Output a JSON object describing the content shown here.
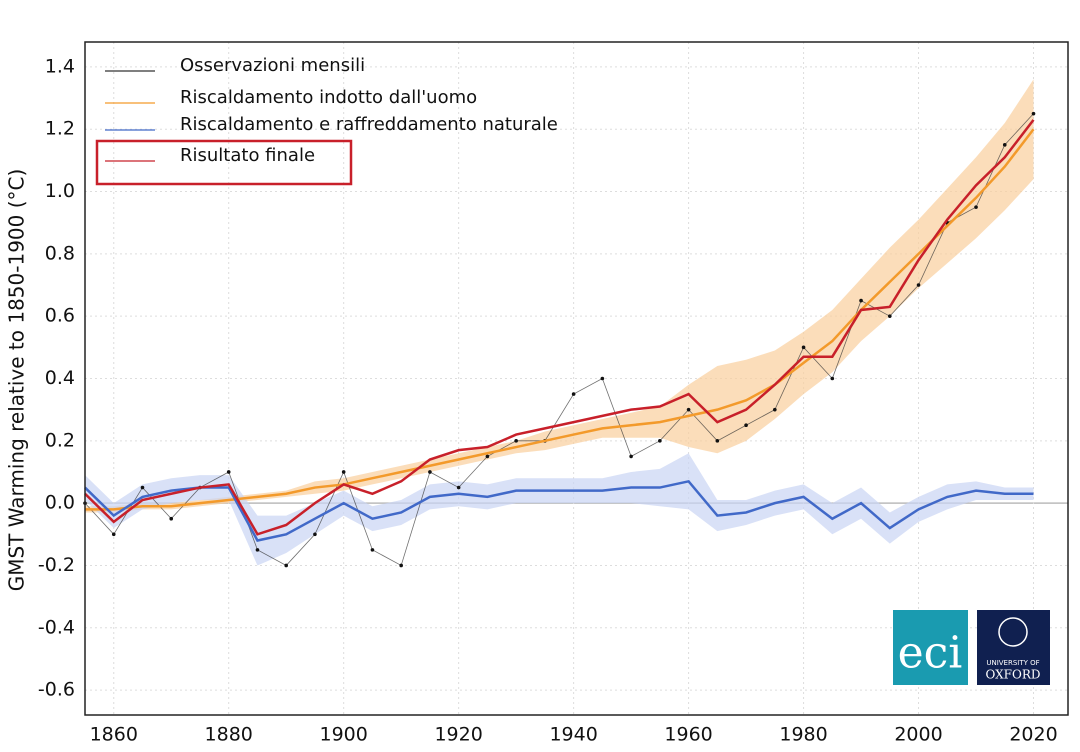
{
  "chart_data": {
    "type": "line",
    "y_label": "GMST Warming relative to 1850-1900 (°C)",
    "xlim": [
      1855,
      2026
    ],
    "ylim": [
      -0.68,
      1.48
    ],
    "xticks": [
      1860,
      1880,
      1900,
      1920,
      1940,
      1960,
      1980,
      2000,
      2020
    ],
    "yticks": [
      -0.6,
      -0.4,
      -0.2,
      {
        "value": 0,
        "label": "0.0"
      },
      0.2,
      0.4,
      0.6,
      0.8,
      {
        "value": 1,
        "label": "1.0"
      },
      1.2,
      1.4
    ],
    "grid": true,
    "legend": "upper left",
    "x": [
      1855,
      1860,
      1865,
      1870,
      1875,
      1880,
      1885,
      1890,
      1895,
      1900,
      1905,
      1910,
      1915,
      1920,
      1925,
      1930,
      1935,
      1940,
      1945,
      1950,
      1955,
      1960,
      1965,
      1970,
      1975,
      1980,
      1985,
      1990,
      1995,
      2000,
      2005,
      2010,
      2015,
      2020
    ],
    "series": [
      {
        "name": "Osservazioni mensili",
        "color": "#333333",
        "values": [
          0.0,
          -0.1,
          0.05,
          -0.05,
          0.05,
          0.1,
          -0.15,
          -0.2,
          -0.1,
          0.1,
          -0.15,
          -0.2,
          0.1,
          0.05,
          0.15,
          0.2,
          0.2,
          0.35,
          0.4,
          0.15,
          0.2,
          0.3,
          0.2,
          0.25,
          0.3,
          0.5,
          0.4,
          0.65,
          0.6,
          0.7,
          0.9,
          0.95,
          1.15,
          1.25
        ]
      },
      {
        "name": "Riscaldamento indotto dall'uomo",
        "color": "#f39a2b",
        "band_color": "#f9cf9c",
        "values": [
          -0.02,
          -0.02,
          -0.01,
          -0.01,
          0.0,
          0.01,
          0.02,
          0.03,
          0.05,
          0.06,
          0.08,
          0.1,
          0.12,
          0.14,
          0.16,
          0.18,
          0.2,
          0.22,
          0.24,
          0.25,
          0.26,
          0.28,
          0.3,
          0.33,
          0.38,
          0.45,
          0.52,
          0.62,
          0.71,
          0.8,
          0.89,
          0.98,
          1.08,
          1.2
        ],
        "lower": [
          -0.03,
          -0.03,
          -0.02,
          -0.02,
          -0.01,
          0.0,
          0.01,
          0.02,
          0.03,
          0.04,
          0.06,
          0.08,
          0.1,
          0.12,
          0.14,
          0.16,
          0.17,
          0.19,
          0.21,
          0.21,
          0.21,
          0.18,
          0.16,
          0.2,
          0.27,
          0.35,
          0.42,
          0.52,
          0.6,
          0.69,
          0.77,
          0.85,
          0.94,
          1.04
        ],
        "upper": [
          -0.01,
          -0.01,
          0.0,
          0.0,
          0.01,
          0.02,
          0.03,
          0.04,
          0.07,
          0.08,
          0.1,
          0.12,
          0.14,
          0.16,
          0.18,
          0.2,
          0.23,
          0.25,
          0.27,
          0.29,
          0.31,
          0.38,
          0.44,
          0.46,
          0.49,
          0.55,
          0.62,
          0.72,
          0.82,
          0.91,
          1.01,
          1.11,
          1.22,
          1.36
        ]
      },
      {
        "name": "Riscaldamento e raffreddamento naturale",
        "color": "#4169c8",
        "band_color": "#c9d4f4",
        "values": [
          0.05,
          -0.04,
          0.02,
          0.04,
          0.05,
          0.05,
          -0.12,
          -0.1,
          -0.05,
          0.0,
          -0.05,
          -0.03,
          0.02,
          0.03,
          0.02,
          0.04,
          0.04,
          0.04,
          0.04,
          0.05,
          0.05,
          0.07,
          -0.04,
          -0.03,
          0.0,
          0.02,
          -0.05,
          0.0,
          -0.08,
          -0.02,
          0.02,
          0.04,
          0.03,
          0.03
        ],
        "lower": [
          0.01,
          -0.08,
          -0.02,
          0.0,
          0.01,
          0.01,
          -0.2,
          -0.16,
          -0.1,
          -0.04,
          -0.09,
          -0.07,
          -0.02,
          -0.01,
          -0.02,
          0.0,
          0.0,
          0.0,
          0.0,
          0.0,
          -0.01,
          -0.02,
          -0.09,
          -0.07,
          -0.04,
          -0.02,
          -0.1,
          -0.05,
          -0.13,
          -0.06,
          -0.02,
          0.01,
          0.01,
          0.01
        ],
        "upper": [
          0.09,
          0.0,
          0.06,
          0.08,
          0.09,
          0.09,
          -0.04,
          -0.04,
          0.0,
          0.04,
          -0.01,
          0.01,
          0.06,
          0.07,
          0.06,
          0.08,
          0.08,
          0.08,
          0.08,
          0.1,
          0.11,
          0.16,
          0.01,
          0.01,
          0.04,
          0.06,
          0.0,
          0.05,
          -0.03,
          0.02,
          0.06,
          0.07,
          0.05,
          0.05
        ]
      },
      {
        "name": "Risultato finale",
        "color": "#c8202a",
        "values": [
          0.03,
          -0.06,
          0.01,
          0.03,
          0.05,
          0.06,
          -0.1,
          -0.07,
          0.0,
          0.06,
          0.03,
          0.07,
          0.14,
          0.17,
          0.18,
          0.22,
          0.24,
          0.26,
          0.28,
          0.3,
          0.31,
          0.35,
          0.26,
          0.3,
          0.38,
          0.47,
          0.47,
          0.62,
          0.63,
          0.78,
          0.91,
          1.02,
          1.11,
          1.23
        ]
      }
    ],
    "logos": {
      "eci": "eci",
      "oxford_top": "UNIVERSITY OF",
      "oxford_bottom": "OXFORD"
    }
  }
}
